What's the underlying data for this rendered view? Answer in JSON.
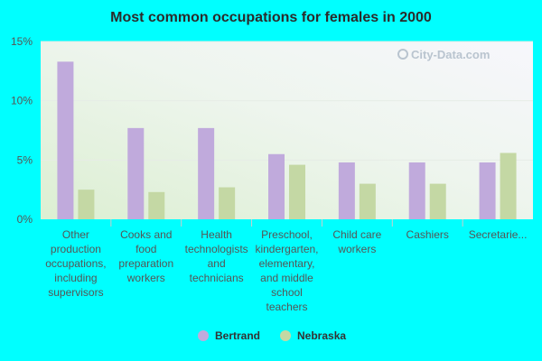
{
  "chart_data": {
    "type": "bar",
    "title": "Most common occupations for females in 2000",
    "categories": [
      [
        "Other",
        "production",
        "occupations,",
        "including",
        "supervisors"
      ],
      [
        "Cooks and",
        "food",
        "preparation",
        "workers"
      ],
      [
        "Health",
        "technologists",
        "and",
        "technicians"
      ],
      [
        "Preschool,",
        "kindergarten,",
        "elementary,",
        "and middle",
        "school",
        "teachers"
      ],
      [
        "Child care",
        "workers"
      ],
      [
        "Cashiers"
      ],
      [
        "Secretarie..."
      ]
    ],
    "series": [
      {
        "name": "Bertrand",
        "color": "#c0aadc",
        "values": [
          13.3,
          7.7,
          7.7,
          5.5,
          4.8,
          4.8,
          4.8
        ]
      },
      {
        "name": "Nebraska",
        "color": "#c4d8a4",
        "values": [
          2.5,
          2.3,
          2.7,
          4.6,
          3.0,
          3.0,
          5.6
        ]
      }
    ],
    "ylim": [
      0,
      15
    ],
    "yticks": [
      0,
      5,
      10,
      15
    ],
    "ytick_labels": [
      "0%",
      "5%",
      "10%",
      "15%"
    ],
    "xlabel": "",
    "ylabel": "",
    "legend_position": "bottom-center",
    "watermark": "City-Data.com"
  }
}
